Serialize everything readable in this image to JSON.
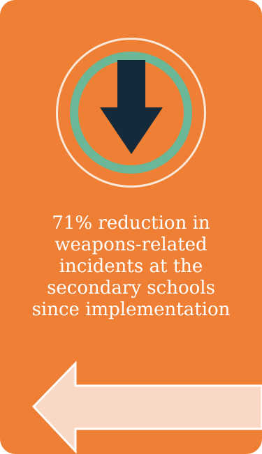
{
  "card": {
    "background_color": "#ee7f34",
    "icon": "down-arrow-icon",
    "ring_color": "#6ab898",
    "arrow_color": "#142a3a",
    "statistic_lines": [
      "71% reduction in",
      "weapons-related",
      "incidents at the",
      "secondary schools",
      "since implementation"
    ],
    "pointer": "left-arrow-icon",
    "pointer_color": "#f9d8c6"
  }
}
